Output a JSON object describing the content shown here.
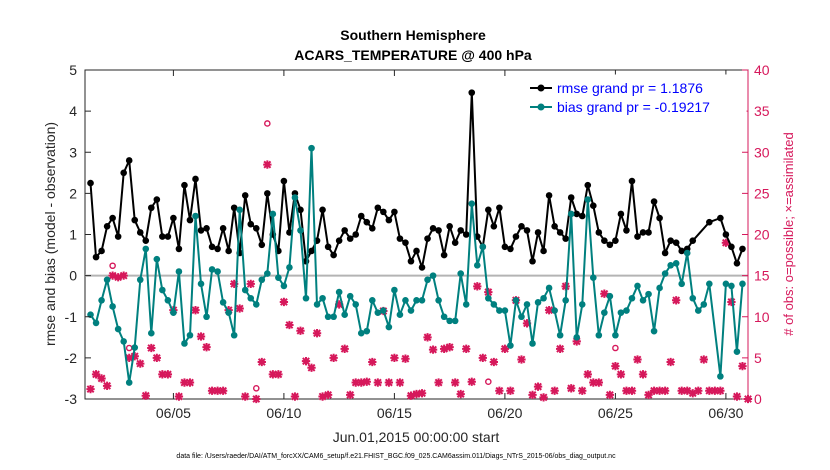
{
  "chart_data": {
    "type": "line",
    "title": [
      "Southern Hemisphere",
      "ACARS_TEMPERATURE @ 400 hPa"
    ],
    "xlabel": "Jun.01,2015 00:00:00 start",
    "ylabel": "rmse and bias (model - observation)",
    "ylabel_right": "# of obs: o=possible; ×=assimilated",
    "footnote": "data file: /Users/raeder/DAI/ATM_forcXX/CAM6_setup/f.e21.FHIST_BGC.f09_025.CAM6assim.011/Diags_NTrS_2015-06/obs_diag_output.nc",
    "x_tick_labels": [
      "06/05",
      "06/10",
      "06/15",
      "06/20",
      "06/25",
      "06/30"
    ],
    "x_tick_values": [
      5,
      10,
      15,
      20,
      25,
      30
    ],
    "xlim": [
      1,
      31
    ],
    "ylim": [
      -3,
      5
    ],
    "y_ticks": [
      "-3",
      "-2",
      "-1",
      "0",
      "1",
      "2",
      "3",
      "4",
      "5"
    ],
    "ylim_right": [
      0,
      40
    ],
    "y_ticks_right": [
      "0",
      "5",
      "10",
      "15",
      "20",
      "25",
      "30",
      "35",
      "40"
    ],
    "legend": [
      "rmse grand pr = 1.1876",
      "bias grand pr = -0.19217"
    ],
    "legend_position": "top-right",
    "colors": {
      "rmse": "#000000",
      "bias": "#00807f",
      "obs": "#d6185b",
      "zero_line": "#b4b4b4"
    },
    "rmse": [
      [
        1.25,
        2.25
      ],
      [
        1.5,
        0.45
      ],
      [
        1.75,
        0.6
      ],
      [
        2.0,
        1.2
      ],
      [
        2.25,
        1.4
      ],
      [
        2.5,
        0.95
      ],
      [
        2.75,
        2.5
      ],
      [
        3.0,
        2.8
      ],
      [
        3.25,
        1.35
      ],
      [
        3.5,
        1.05
      ],
      [
        3.75,
        0.85
      ],
      [
        4.0,
        1.65
      ],
      [
        4.25,
        1.85
      ],
      [
        4.5,
        0.95
      ],
      [
        4.75,
        0.95
      ],
      [
        5.0,
        1.4
      ],
      [
        5.25,
        0.65
      ],
      [
        5.5,
        2.2
      ],
      [
        5.75,
        1.35
      ],
      [
        6.0,
        2.35
      ],
      [
        6.25,
        1.1
      ],
      [
        6.5,
        1.15
      ],
      [
        6.75,
        0.7
      ],
      [
        7.0,
        0.65
      ],
      [
        7.25,
        1.15
      ],
      [
        7.5,
        0.6
      ],
      [
        7.75,
        1.65
      ],
      [
        8.0,
        0.55
      ],
      [
        8.25,
        1.95
      ],
      [
        8.5,
        1.25
      ],
      [
        8.75,
        1.15
      ],
      [
        9.0,
        0.75
      ],
      [
        9.25,
        2.0
      ],
      [
        9.5,
        1.0
      ],
      [
        9.75,
        0.6
      ],
      [
        10.0,
        2.3
      ],
      [
        10.25,
        1.05
      ],
      [
        10.5,
        2.0
      ],
      [
        10.75,
        1.6
      ],
      [
        11.0,
        0.35
      ],
      [
        11.25,
        0.6
      ],
      [
        11.5,
        0.85
      ],
      [
        11.75,
        1.6
      ],
      [
        12.0,
        0.7
      ],
      [
        12.25,
        0.5
      ],
      [
        12.5,
        0.85
      ],
      [
        12.75,
        1.1
      ],
      [
        13.0,
        0.9
      ],
      [
        13.25,
        1.0
      ],
      [
        13.5,
        1.45
      ],
      [
        13.75,
        1.3
      ],
      [
        14.0,
        1.15
      ],
      [
        14.25,
        1.65
      ],
      [
        14.5,
        1.55
      ],
      [
        14.75,
        1.35
      ],
      [
        15.0,
        1.55
      ],
      [
        15.25,
        0.9
      ],
      [
        15.5,
        0.8
      ],
      [
        15.75,
        0.35
      ],
      [
        16.0,
        0.6
      ],
      [
        16.25,
        0.2
      ],
      [
        16.5,
        0.9
      ],
      [
        16.75,
        1.15
      ],
      [
        17.0,
        1.1
      ],
      [
        17.25,
        0.5
      ],
      [
        17.5,
        1.2
      ],
      [
        17.75,
        0.8
      ],
      [
        18.0,
        1.1
      ],
      [
        18.25,
        1.0
      ],
      [
        18.5,
        4.45
      ],
      [
        18.75,
        0.95
      ],
      [
        19.0,
        0.7
      ],
      [
        19.25,
        1.6
      ],
      [
        19.5,
        1.2
      ],
      [
        19.75,
        1.65
      ],
      [
        20.0,
        0.7
      ],
      [
        20.25,
        0.65
      ],
      [
        20.5,
        0.95
      ],
      [
        20.75,
        1.2
      ],
      [
        21.0,
        1.1
      ],
      [
        21.25,
        0.35
      ],
      [
        21.5,
        1.05
      ],
      [
        21.75,
        0.6
      ],
      [
        22.0,
        1.95
      ],
      [
        22.25,
        1.2
      ],
      [
        22.5,
        1.05
      ],
      [
        22.75,
        0.9
      ],
      [
        23.0,
        1.9
      ],
      [
        23.25,
        1.5
      ],
      [
        23.5,
        1.45
      ],
      [
        23.75,
        2.2
      ],
      [
        24.0,
        1.7
      ],
      [
        24.25,
        1.05
      ],
      [
        24.5,
        0.85
      ],
      [
        24.75,
        0.75
      ],
      [
        25.0,
        0.85
      ],
      [
        25.25,
        1.5
      ],
      [
        25.5,
        1.1
      ],
      [
        25.75,
        2.3
      ],
      [
        26.0,
        0.95
      ],
      [
        26.25,
        1.05
      ],
      [
        26.5,
        1.05
      ],
      [
        26.75,
        1.8
      ],
      [
        27.0,
        1.4
      ],
      [
        27.25,
        0.55
      ],
      [
        27.5,
        0.85
      ],
      [
        27.75,
        0.8
      ],
      [
        28.0,
        0.6
      ],
      [
        28.25,
        0.65
      ],
      [
        28.5,
        0.85
      ],
      [
        29.25,
        1.3
      ],
      [
        29.75,
        1.4
      ],
      [
        30.0,
        1.0
      ],
      [
        30.25,
        0.7
      ],
      [
        30.5,
        0.3
      ],
      [
        30.75,
        0.65
      ]
    ],
    "bias": [
      [
        1.25,
        -0.95
      ],
      [
        1.5,
        -1.15
      ],
      [
        1.75,
        -0.6
      ],
      [
        2.0,
        -0.1
      ],
      [
        2.25,
        -0.75
      ],
      [
        2.5,
        -1.3
      ],
      [
        2.75,
        -1.6
      ],
      [
        3.0,
        -2.6
      ],
      [
        3.25,
        -1.75
      ],
      [
        3.5,
        -0.1
      ],
      [
        3.75,
        0.65
      ],
      [
        4.0,
        -1.4
      ],
      [
        4.25,
        0.4
      ],
      [
        4.5,
        -0.35
      ],
      [
        4.75,
        -0.6
      ],
      [
        5.0,
        -0.9
      ],
      [
        5.25,
        0.1
      ],
      [
        5.5,
        -1.65
      ],
      [
        5.75,
        -1.45
      ],
      [
        6.0,
        1.45
      ],
      [
        6.25,
        -0.2
      ],
      [
        6.5,
        -1.0
      ],
      [
        6.75,
        0.15
      ],
      [
        7.0,
        0.1
      ],
      [
        7.25,
        -0.65
      ],
      [
        7.5,
        -0.9
      ],
      [
        7.75,
        -1.45
      ],
      [
        8.0,
        1.6
      ],
      [
        8.25,
        -0.35
      ],
      [
        8.5,
        -0.55
      ],
      [
        8.75,
        -0.7
      ],
      [
        9.0,
        -0.1
      ],
      [
        9.25,
        0.05
      ],
      [
        9.5,
        1.5
      ],
      [
        9.75,
        -0.05
      ],
      [
        10.0,
        -0.25
      ],
      [
        10.25,
        0.2
      ],
      [
        10.5,
        1.9
      ],
      [
        10.75,
        1.1
      ],
      [
        11.0,
        -0.55
      ],
      [
        11.25,
        3.1
      ],
      [
        11.5,
        -0.7
      ],
      [
        11.75,
        -0.55
      ],
      [
        12.0,
        -1.0
      ],
      [
        12.25,
        -1.0
      ],
      [
        12.5,
        -0.4
      ],
      [
        12.75,
        -0.95
      ],
      [
        13.0,
        -0.5
      ],
      [
        13.25,
        -0.7
      ],
      [
        13.5,
        -1.4
      ],
      [
        13.75,
        -1.35
      ],
      [
        14.0,
        -0.6
      ],
      [
        14.25,
        -0.9
      ],
      [
        14.5,
        -0.85
      ],
      [
        14.75,
        -1.25
      ],
      [
        15.0,
        -0.35
      ],
      [
        15.25,
        -0.95
      ],
      [
        15.5,
        -0.6
      ],
      [
        15.75,
        -0.85
      ],
      [
        16.0,
        -0.6
      ],
      [
        16.25,
        -0.6
      ],
      [
        16.5,
        -0.1
      ],
      [
        16.75,
        0.0
      ],
      [
        17.0,
        -0.6
      ],
      [
        17.25,
        -1.0
      ],
      [
        17.5,
        -1.1
      ],
      [
        17.75,
        -1.1
      ],
      [
        18.0,
        0.05
      ],
      [
        18.25,
        -0.7
      ],
      [
        18.5,
        1.75
      ],
      [
        18.75,
        0.25
      ],
      [
        19.0,
        0.7
      ],
      [
        19.25,
        -0.55
      ],
      [
        19.5,
        -0.7
      ],
      [
        19.75,
        -0.85
      ],
      [
        20.0,
        -0.85
      ],
      [
        20.25,
        -1.7
      ],
      [
        20.5,
        -0.6
      ],
      [
        20.75,
        -1.0
      ],
      [
        21.0,
        -0.7
      ],
      [
        21.25,
        -1.65
      ],
      [
        21.5,
        -0.65
      ],
      [
        21.75,
        -0.55
      ],
      [
        22.0,
        -0.3
      ],
      [
        22.25,
        -0.85
      ],
      [
        22.5,
        -1.45
      ],
      [
        22.75,
        -0.6
      ],
      [
        23.0,
        1.5
      ],
      [
        23.25,
        -1.5
      ],
      [
        23.5,
        -0.7
      ],
      [
        23.75,
        1.85
      ],
      [
        24.0,
        -0.05
      ],
      [
        24.25,
        -1.45
      ],
      [
        24.5,
        -0.9
      ],
      [
        24.75,
        -0.5
      ],
      [
        25.0,
        -1.45
      ],
      [
        25.25,
        -0.9
      ],
      [
        25.5,
        -0.85
      ],
      [
        25.75,
        -0.55
      ],
      [
        26.0,
        -0.25
      ],
      [
        26.25,
        -0.6
      ],
      [
        26.5,
        -0.45
      ],
      [
        26.75,
        -1.35
      ],
      [
        27.0,
        -0.3
      ],
      [
        27.25,
        0.05
      ],
      [
        27.5,
        0.25
      ],
      [
        27.75,
        0.3
      ],
      [
        28.0,
        -0.2
      ],
      [
        28.25,
        0.55
      ],
      [
        28.5,
        -0.55
      ],
      [
        28.75,
        -0.85
      ],
      [
        29.0,
        -0.7
      ],
      [
        29.25,
        -0.2
      ],
      [
        29.75,
        -2.45
      ],
      [
        30.0,
        -0.2
      ],
      [
        30.25,
        -0.25
      ],
      [
        30.5,
        -1.85
      ],
      [
        30.75,
        -0.2
      ]
    ],
    "obs_possible": [
      [
        2.25,
        16.2
      ],
      [
        3.0,
        6.2
      ],
      [
        8.75,
        1.3
      ],
      [
        9.25,
        33.5
      ],
      [
        19.25,
        2.1
      ],
      [
        25.0,
        6.2
      ]
    ],
    "obs_assimilated": [
      [
        1.25,
        1.2
      ],
      [
        1.5,
        3.0
      ],
      [
        1.75,
        2.5
      ],
      [
        2.0,
        1.6
      ],
      [
        2.25,
        15.0
      ],
      [
        2.5,
        14.8
      ],
      [
        2.75,
        15.0
      ],
      [
        3.0,
        5.0
      ],
      [
        3.25,
        5.2
      ],
      [
        3.5,
        4.3
      ],
      [
        3.75,
        0.4
      ],
      [
        4.0,
        6.2
      ],
      [
        4.25,
        5.0
      ],
      [
        4.5,
        3.0
      ],
      [
        4.75,
        3.0
      ],
      [
        5.0,
        10.8
      ],
      [
        5.25,
        0.3
      ],
      [
        5.5,
        2.0
      ],
      [
        5.75,
        2.0
      ],
      [
        6.0,
        10.8
      ],
      [
        6.25,
        7.6
      ],
      [
        6.5,
        6.3
      ],
      [
        6.75,
        1.0
      ],
      [
        7.0,
        1.0
      ],
      [
        7.25,
        1.0
      ],
      [
        7.5,
        10.8
      ],
      [
        7.75,
        14.0
      ],
      [
        8.0,
        11.0
      ],
      [
        8.25,
        0.3
      ],
      [
        8.5,
        14.0
      ],
      [
        8.75,
        0.0
      ],
      [
        9.0,
        4.5
      ],
      [
        9.25,
        28.5
      ],
      [
        9.5,
        3.0
      ],
      [
        9.75,
        3.0
      ],
      [
        10.0,
        11.8
      ],
      [
        10.25,
        9.0
      ],
      [
        10.5,
        0.3
      ],
      [
        10.75,
        8.3
      ],
      [
        11.0,
        4.6
      ],
      [
        11.25,
        3.8
      ],
      [
        11.5,
        8.0
      ],
      [
        11.75,
        0.3
      ],
      [
        12.0,
        0.5
      ],
      [
        12.25,
        5.0
      ],
      [
        12.5,
        11.5
      ],
      [
        12.75,
        6.1
      ],
      [
        13.0,
        0.5
      ],
      [
        13.25,
        2.0
      ],
      [
        13.5,
        2.0
      ],
      [
        13.75,
        2.1
      ],
      [
        14.0,
        4.5
      ],
      [
        14.25,
        2.0
      ],
      [
        14.5,
        10.7
      ],
      [
        14.75,
        2.0
      ],
      [
        15.0,
        5.0
      ],
      [
        15.25,
        2.0
      ],
      [
        15.5,
        4.9
      ],
      [
        15.75,
        0.4
      ],
      [
        16.0,
        0.6
      ],
      [
        16.25,
        0.7
      ],
      [
        16.5,
        7.5
      ],
      [
        16.75,
        6.0
      ],
      [
        17.0,
        2.0
      ],
      [
        17.25,
        6.1
      ],
      [
        17.5,
        6.3
      ],
      [
        17.75,
        2.0
      ],
      [
        18.0,
        0.6
      ],
      [
        18.25,
        6.1
      ],
      [
        18.5,
        2.1
      ],
      [
        18.75,
        13.7
      ],
      [
        19.0,
        5.0
      ],
      [
        19.25,
        13.0
      ],
      [
        19.5,
        4.5
      ],
      [
        19.75,
        1.0
      ],
      [
        20.0,
        6.1
      ],
      [
        20.25,
        1.0
      ],
      [
        20.5,
        12.0
      ],
      [
        20.75,
        4.8
      ],
      [
        21.0,
        9.2
      ],
      [
        21.25,
        0.5
      ],
      [
        21.5,
        1.5
      ],
      [
        21.75,
        0.2
      ],
      [
        22.0,
        10.8
      ],
      [
        22.25,
        1.0
      ],
      [
        22.5,
        6.1
      ],
      [
        22.75,
        13.7
      ],
      [
        23.0,
        1.3
      ],
      [
        23.25,
        7.0
      ],
      [
        23.5,
        1.0
      ],
      [
        23.75,
        3.0
      ],
      [
        24.0,
        2.0
      ],
      [
        24.25,
        2.0
      ],
      [
        24.5,
        12.8
      ],
      [
        24.75,
        0.5
      ],
      [
        25.0,
        4.0
      ],
      [
        25.25,
        3.0
      ],
      [
        25.5,
        1.0
      ],
      [
        25.75,
        1.0
      ],
      [
        26.0,
        4.8
      ],
      [
        26.25,
        3.0
      ],
      [
        26.5,
        0.5
      ],
      [
        26.75,
        1.0
      ],
      [
        27.0,
        1.0
      ],
      [
        27.25,
        1.0
      ],
      [
        27.5,
        4.5
      ],
      [
        27.75,
        12.0
      ],
      [
        28.0,
        1.0
      ],
      [
        28.25,
        1.0
      ],
      [
        28.5,
        0.7
      ],
      [
        28.75,
        1.0
      ],
      [
        29.0,
        4.8
      ],
      [
        29.25,
        1.0
      ],
      [
        29.5,
        1.0
      ],
      [
        29.75,
        1.0
      ],
      [
        30.0,
        19.0
      ],
      [
        30.25,
        11.8
      ],
      [
        30.5,
        0.3
      ],
      [
        30.75,
        4.0
      ],
      [
        31.0,
        0.0
      ]
    ]
  }
}
